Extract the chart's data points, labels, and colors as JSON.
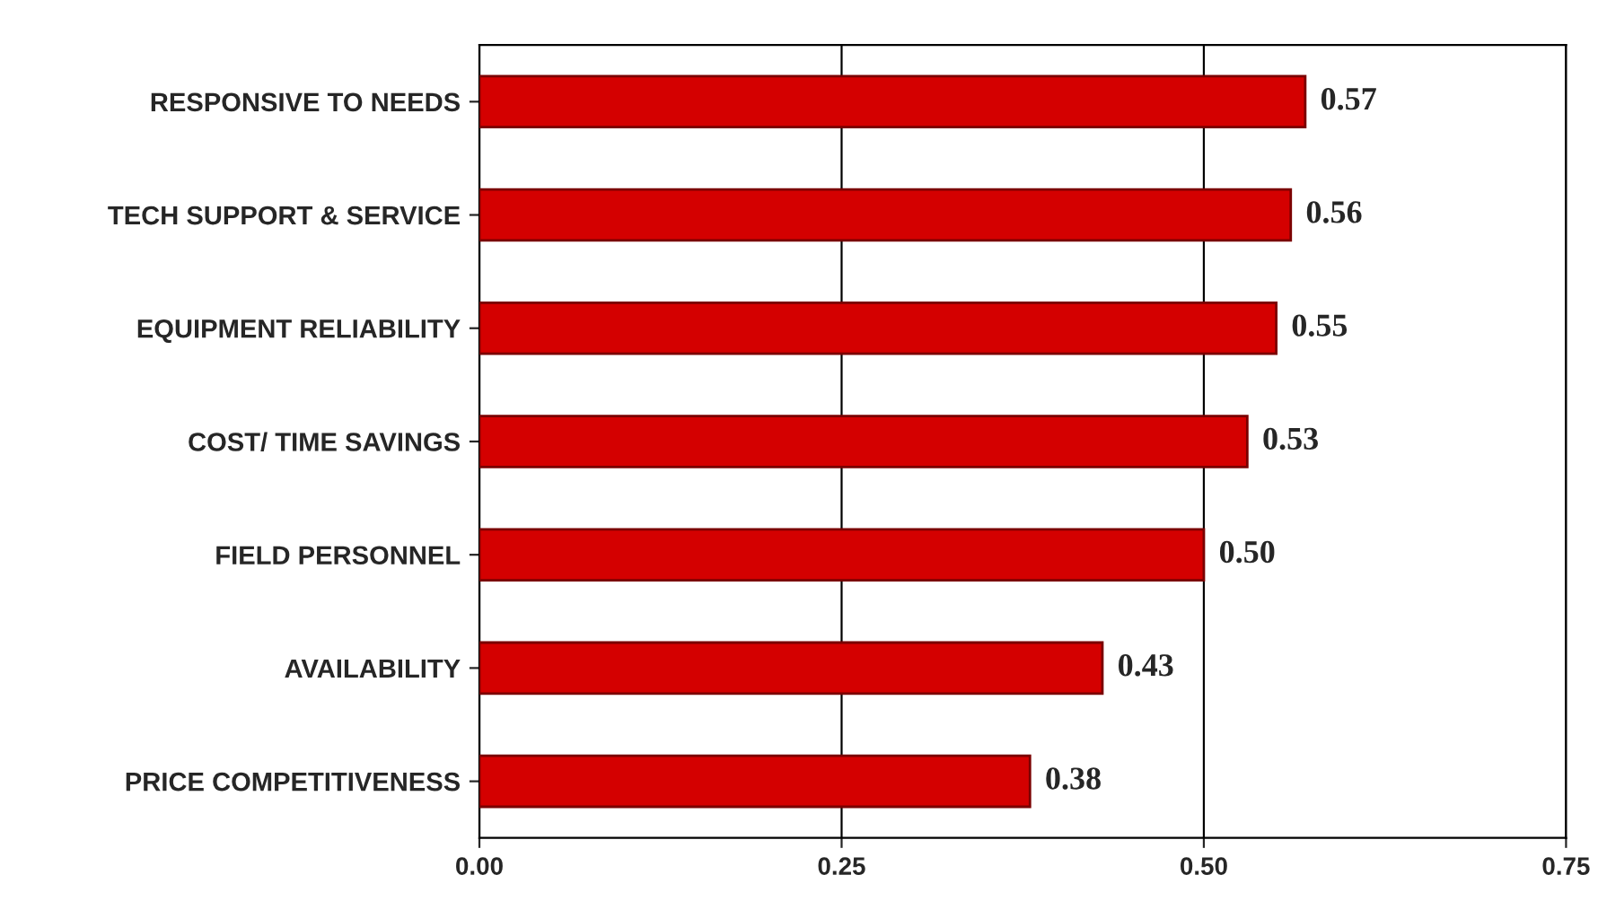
{
  "chart_data": {
    "type": "bar",
    "orientation": "horizontal",
    "categories": [
      "RESPONSIVE TO NEEDS",
      "TECH SUPPORT & SERVICE",
      "EQUIPMENT RELIABILITY",
      "COST/ TIME SAVINGS",
      "FIELD PERSONNEL",
      "AVAILABILITY",
      "PRICE COMPETITIVENESS"
    ],
    "values": [
      0.57,
      0.56,
      0.55,
      0.53,
      0.5,
      0.43,
      0.38
    ],
    "value_labels": [
      "0.57",
      "0.56",
      "0.55",
      "0.53",
      "0.50",
      "0.43",
      "0.38"
    ],
    "color": "#d40000",
    "xlim": [
      0,
      0.75
    ],
    "xticks": [
      {
        "value": 0,
        "label": "0.00"
      },
      {
        "value": 0.25,
        "label": "0.25"
      },
      {
        "value": 0.5,
        "label": "0.50"
      },
      {
        "value": 0.75,
        "label": "0.75"
      }
    ],
    "grid": "x"
  }
}
